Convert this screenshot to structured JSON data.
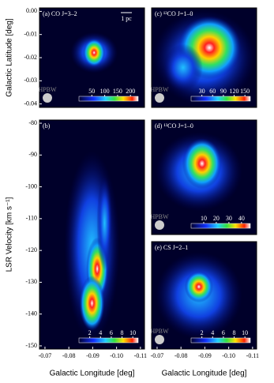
{
  "chart_data": [
    {
      "type": "image",
      "label": "(a) CO J=3–2",
      "y_label": "Galactic Latitude [deg]",
      "xlim": [
        -0.0677,
        -0.1117
      ],
      "ylim": [
        -0.0415,
        0.0015
      ],
      "yticks": [
        {
          "value": 0,
          "label": "0.00"
        },
        -0.01,
        -0.02,
        -0.03,
        -0.04
      ],
      "scale_label": "1 pc",
      "beam_label": "HPBW",
      "cbar_lim": [
        0,
        230
      ],
      "cbar_ticks": [
        50,
        100,
        150,
        200
      ]
    },
    {
      "type": "image",
      "label": "(b)",
      "y_label": "LSR Velocity [km s⁻¹]",
      "x_label": "Galactic Longitude [deg]",
      "xlim": [
        -0.0677,
        -0.1117
      ],
      "ylim": [
        -151,
        -79
      ],
      "xticks": [
        -0.07,
        -0.08,
        -0.09,
        {
          "value": -0.1,
          "label": "-0.10"
        },
        -0.11
      ],
      "yticks": [
        -80,
        -90,
        -100,
        -110,
        -120,
        -130,
        -140,
        -150
      ],
      "cbar_lim": [
        0,
        11
      ],
      "cbar_ticks": [
        2,
        4,
        6,
        8,
        10
      ]
    },
    {
      "type": "image",
      "label": "(c) ¹²CO J=1–0",
      "beam_label": "HPBW",
      "xlim": [
        -0.0677,
        -0.1117
      ],
      "ylim": [
        -0.0415,
        0.0015
      ],
      "cbar_lim": [
        0,
        165
      ],
      "cbar_ticks": [
        30,
        60,
        90,
        120,
        150
      ]
    },
    {
      "type": "image",
      "label": "(d) ¹³CO J=1–0",
      "beam_label": "HPBW",
      "xlim": [
        -0.0677,
        -0.1117
      ],
      "ylim": [
        -151,
        -79
      ],
      "cbar_lim": [
        0,
        47
      ],
      "cbar_ticks": [
        10,
        20,
        30,
        40
      ]
    },
    {
      "type": "image",
      "label": "(e) CS J=2–1",
      "beam_label": "HPBW",
      "x_label": "Galactic Longitude [deg]",
      "xlim": [
        -0.0677,
        -0.1117
      ],
      "ylim": [
        -151,
        -79
      ],
      "xticks": [
        -0.07,
        -0.08,
        -0.09,
        {
          "value": -0.1,
          "label": "-0.10"
        },
        -0.11
      ],
      "cbar_lim": [
        0,
        11
      ],
      "cbar_ticks": [
        2,
        4,
        6,
        8,
        10
      ]
    }
  ]
}
